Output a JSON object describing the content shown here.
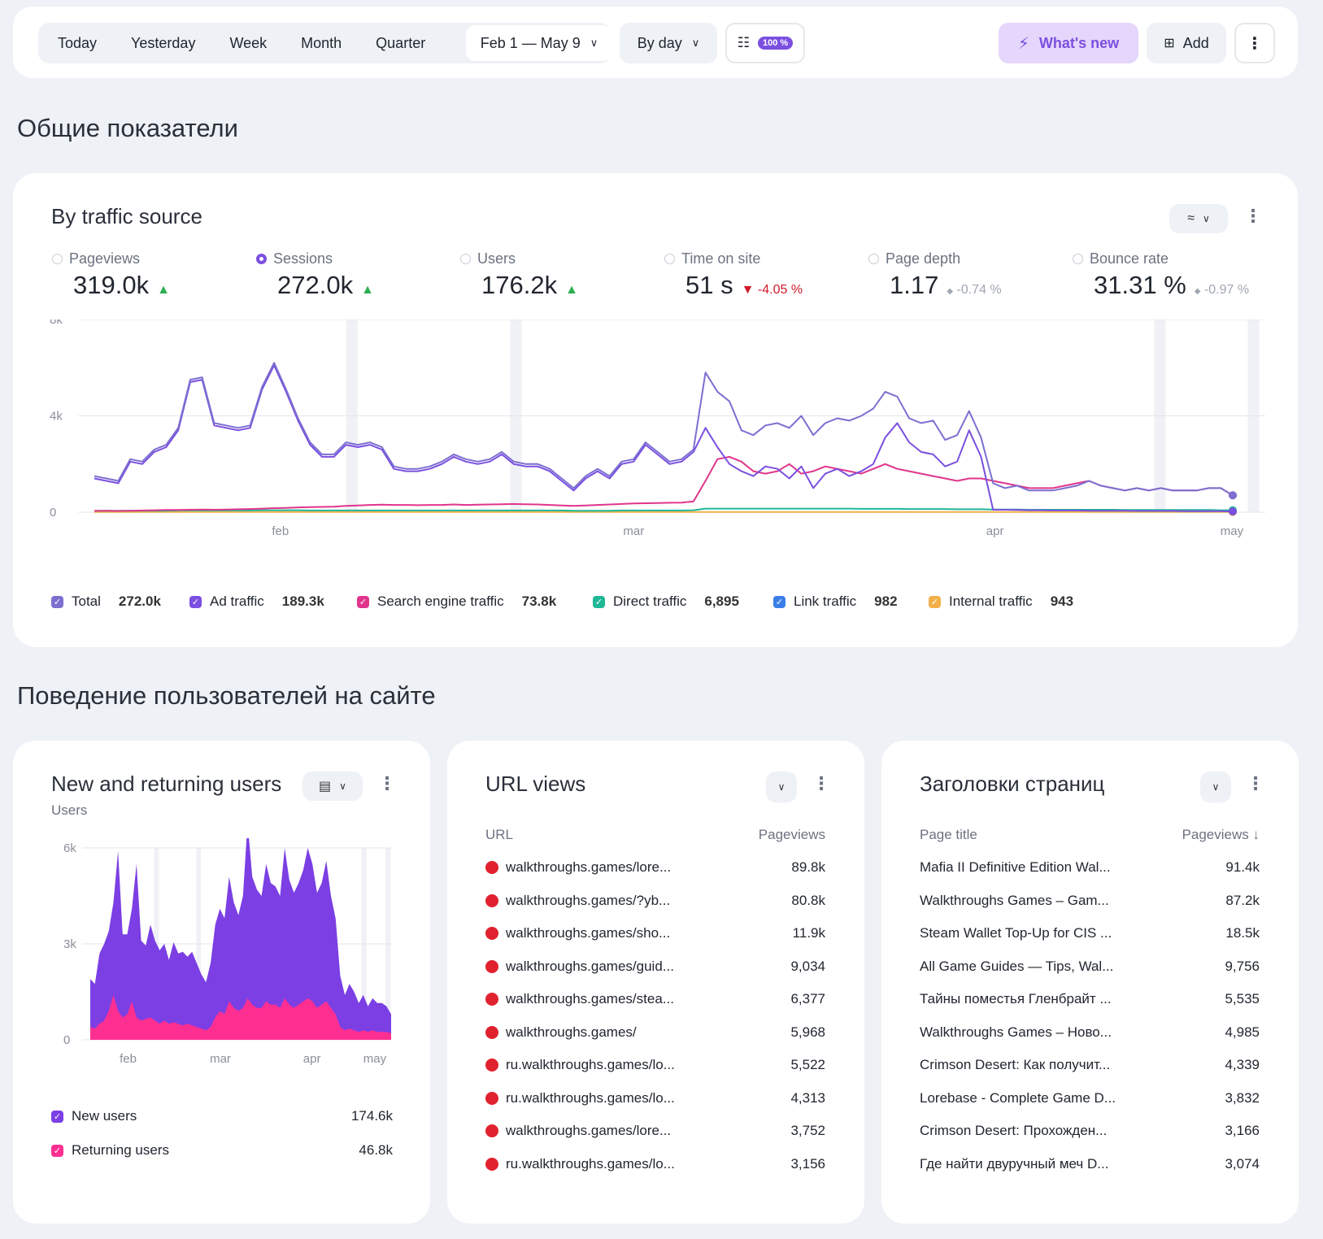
{
  "toolbar": {
    "periods": [
      "Today",
      "Yesterday",
      "Week",
      "Month",
      "Quarter"
    ],
    "date_range": "Feb 1 — May 9",
    "grouping": "By day",
    "sampling_badge": "100 %",
    "whats_new": "What's new",
    "add": "Add"
  },
  "sections": {
    "general": "Общие показатели",
    "behavior": "Поведение пользователей на сайте"
  },
  "traffic": {
    "title": "By traffic source",
    "metrics": [
      {
        "label": "Pageviews",
        "value": "319.0k",
        "trend": "▲",
        "delta": ""
      },
      {
        "label": "Sessions",
        "value": "272.0k",
        "trend": "▲",
        "delta": ""
      },
      {
        "label": "Users",
        "value": "176.2k",
        "trend": "▲",
        "delta": ""
      },
      {
        "label": "Time on site",
        "value": "51 s",
        "trend": "▼",
        "delta": "-4.05 %"
      },
      {
        "label": "Page depth",
        "value": "1.17",
        "trend": "◆",
        "delta": "-0.74 %"
      },
      {
        "label": "Bounce rate",
        "value": "31.31 %",
        "trend": "◆",
        "delta": "-0.97 %"
      }
    ],
    "legend": [
      {
        "label": "Total",
        "value": "272.0k",
        "color": "#7b6fd0"
      },
      {
        "label": "Ad traffic",
        "value": "189.3k",
        "color": "#7b4fe0"
      },
      {
        "label": "Search engine traffic",
        "value": "73.8k",
        "color": "#e0358c"
      },
      {
        "label": "Direct traffic",
        "value": "6,895",
        "color": "#1fb896"
      },
      {
        "label": "Link traffic",
        "value": "982",
        "color": "#3a7ee8"
      },
      {
        "label": "Internal traffic",
        "value": "943",
        "color": "#f3b04a"
      }
    ]
  },
  "chart_data": [
    {
      "type": "line",
      "ylim": [
        0,
        8000
      ],
      "yticks": [
        "8k",
        "4k",
        "0"
      ],
      "xticks": [
        "feb",
        "mar",
        "apr",
        "may"
      ],
      "series": [
        {
          "name": "Total",
          "color": "#7b6fd0",
          "values": [
            1500,
            1400,
            1300,
            2200,
            2100,
            2600,
            2800,
            3500,
            5500,
            5600,
            3700,
            3600,
            3500,
            3600,
            5200,
            6200,
            5100,
            3900,
            2900,
            2400,
            2400,
            2900,
            2800,
            2900,
            2700,
            1900,
            1800,
            1800,
            1900,
            2100,
            2400,
            2200,
            2100,
            2200,
            2500,
            2100,
            2000,
            2000,
            1800,
            1400,
            1000,
            1500,
            1800,
            1500,
            2100,
            2200,
            2900,
            2500,
            2100,
            2200,
            2600,
            5800,
            5000,
            4600,
            3400,
            3200,
            3600,
            3700,
            3500,
            4000,
            3200,
            3700,
            3900,
            3800,
            4000,
            4300,
            5000,
            4800,
            3900,
            3700,
            3800,
            3000,
            3200,
            4200,
            3100,
            1200,
            1000,
            1100,
            900,
            900,
            900,
            1000,
            1100,
            1300,
            1100,
            1000,
            900,
            1000,
            900,
            1000,
            900,
            900,
            900,
            1000,
            1000,
            700
          ]
        },
        {
          "name": "Ad traffic",
          "color": "#7b4fe0",
          "values": [
            1400,
            1300,
            1200,
            2100,
            2000,
            2500,
            2700,
            3400,
            5400,
            5500,
            3600,
            3500,
            3400,
            3500,
            5100,
            6100,
            5000,
            3800,
            2800,
            2300,
            2300,
            2800,
            2700,
            2800,
            2600,
            1800,
            1700,
            1700,
            1800,
            2000,
            2300,
            2100,
            2000,
            2100,
            2400,
            2000,
            1900,
            1900,
            1700,
            1300,
            900,
            1400,
            1700,
            1400,
            2000,
            2100,
            2800,
            2400,
            2000,
            2100,
            2500,
            3500,
            2700,
            2000,
            1700,
            1500,
            1900,
            1800,
            1400,
            1900,
            1000,
            1600,
            1800,
            1500,
            1700,
            2000,
            3100,
            3700,
            2900,
            2500,
            2400,
            1900,
            2100,
            3400,
            2300,
            100,
            100,
            90,
            80,
            80,
            70,
            70,
            70,
            60,
            60,
            60,
            60,
            50,
            50,
            50,
            50,
            40,
            40,
            40,
            40,
            30
          ]
        },
        {
          "name": "Search engine traffic",
          "color": "#e0358c",
          "values": [
            50,
            60,
            50,
            60,
            70,
            80,
            90,
            90,
            100,
            110,
            100,
            110,
            120,
            130,
            150,
            170,
            180,
            200,
            210,
            220,
            230,
            260,
            280,
            300,
            310,
            300,
            300,
            290,
            300,
            300,
            320,
            300,
            310,
            320,
            330,
            340,
            330,
            320,
            300,
            280,
            260,
            280,
            300,
            320,
            340,
            360,
            370,
            380,
            390,
            400,
            450,
            1300,
            2200,
            2300,
            2100,
            1700,
            1600,
            1700,
            2000,
            1600,
            1700,
            1900,
            1800,
            1700,
            1600,
            1800,
            2000,
            1800,
            1700,
            1600,
            1500,
            1400,
            1300,
            1400,
            1400,
            1300,
            1200,
            1100,
            1000,
            1000,
            1000,
            1100,
            1200,
            1300,
            1100,
            1000,
            900,
            1000,
            900,
            1000,
            900,
            900,
            900,
            1000,
            1000,
            700
          ]
        },
        {
          "name": "Direct traffic",
          "color": "#1fb896",
          "values": [
            60,
            60,
            60,
            60,
            60,
            60,
            60,
            70,
            70,
            70,
            70,
            70,
            70,
            70,
            80,
            80,
            80,
            80,
            70,
            70,
            70,
            70,
            70,
            70,
            70,
            70,
            70,
            70,
            70,
            70,
            70,
            70,
            70,
            70,
            70,
            70,
            70,
            70,
            70,
            70,
            60,
            60,
            60,
            60,
            70,
            70,
            70,
            70,
            70,
            70,
            80,
            150,
            150,
            150,
            150,
            150,
            150,
            150,
            150,
            150,
            150,
            150,
            150,
            150,
            140,
            140,
            140,
            140,
            130,
            130,
            130,
            130,
            120,
            120,
            120,
            110,
            110,
            110,
            100,
            100,
            100,
            100,
            100,
            100,
            100,
            100,
            90,
            90,
            90,
            90,
            90,
            90,
            90,
            90,
            80,
            80
          ]
        },
        {
          "name": "Internal traffic",
          "color": "#f3b04a",
          "values": [
            10,
            10,
            10,
            10,
            10,
            10,
            10,
            10,
            10,
            10,
            10,
            10,
            10,
            10,
            10,
            10,
            10,
            10,
            10,
            10,
            10,
            10,
            10,
            10,
            10,
            10,
            10,
            10,
            10,
            10,
            10,
            10,
            10,
            10,
            10,
            10,
            10,
            10,
            10,
            10,
            10,
            10,
            10,
            10,
            10,
            10,
            10,
            10,
            10,
            10,
            10,
            10,
            10,
            10,
            10,
            10,
            10,
            10,
            10,
            10,
            10,
            10,
            10,
            10,
            10,
            10,
            10,
            10,
            10,
            10,
            10,
            10,
            10,
            10,
            10,
            10,
            10,
            10,
            10,
            10,
            10,
            10,
            10,
            10,
            10,
            10,
            10,
            10,
            10,
            10,
            10,
            10,
            10,
            10,
            10,
            10
          ]
        }
      ]
    },
    {
      "type": "area",
      "ylabel": "Users",
      "ylim": [
        0,
        6000
      ],
      "yticks": [
        "6k",
        "3k",
        "0"
      ],
      "xticks": [
        "feb",
        "mar",
        "apr",
        "may"
      ],
      "series": [
        {
          "name": "New users",
          "color": "#7b3fe4",
          "values": [
            1500,
            1400,
            2200,
            2400,
            2500,
            2900,
            5000,
            2600,
            2500,
            2900,
            4800,
            2500,
            2300,
            2900,
            2500,
            2300,
            2400,
            2000,
            2500,
            2200,
            2300,
            2100,
            2300,
            2000,
            1700,
            1500,
            2000,
            2900,
            3200,
            3000,
            3900,
            3300,
            3000,
            3500,
            5500,
            4000,
            3700,
            3500,
            4300,
            3800,
            3700,
            3500,
            4700,
            3900,
            3600,
            3800,
            4100,
            4700,
            4300,
            3600,
            3800,
            4400,
            3500,
            3000,
            1600,
            1100,
            1400,
            1200,
            900,
            1100,
            800,
            1000,
            900,
            900,
            800,
            600
          ]
        },
        {
          "name": "Returning users",
          "color": "#ff2f92",
          "values": [
            400,
            350,
            500,
            600,
            900,
            1400,
            900,
            700,
            800,
            1200,
            700,
            600,
            650,
            700,
            600,
            500,
            600,
            500,
            550,
            500,
            450,
            500,
            450,
            400,
            350,
            300,
            400,
            700,
            900,
            800,
            1200,
            1000,
            900,
            1000,
            1300,
            1100,
            1000,
            1000,
            1200,
            1100,
            1100,
            1000,
            1300,
            1100,
            1000,
            1100,
            1200,
            1300,
            1200,
            1000,
            1100,
            1200,
            1000,
            800,
            400,
            300,
            350,
            300,
            250,
            300,
            250,
            300,
            250,
            250,
            250,
            200
          ]
        }
      ]
    }
  ],
  "new_returning": {
    "title": "New and returning users",
    "subtitle": "Users",
    "legend": [
      {
        "label": "New users",
        "value": "174.6k",
        "color": "#7b3fe4"
      },
      {
        "label": "Returning users",
        "value": "46.8k",
        "color": "#ff2f92"
      }
    ]
  },
  "url_views": {
    "title": "URL views",
    "col1": "URL",
    "col2": "Pageviews",
    "rows": [
      {
        "url": "walkthroughs.games/lore...",
        "value": "89.8k"
      },
      {
        "url": "walkthroughs.games/?yb...",
        "value": "80.8k"
      },
      {
        "url": "walkthroughs.games/sho...",
        "value": "11.9k"
      },
      {
        "url": "walkthroughs.games/guid...",
        "value": "9,034"
      },
      {
        "url": "walkthroughs.games/stea...",
        "value": "6,377"
      },
      {
        "url": "walkthroughs.games/",
        "value": "5,968"
      },
      {
        "url": "ru.walkthroughs.games/lo...",
        "value": "5,522"
      },
      {
        "url": "ru.walkthroughs.games/lo...",
        "value": "4,313"
      },
      {
        "url": "walkthroughs.games/lore...",
        "value": "3,752"
      },
      {
        "url": "ru.walkthroughs.games/lo...",
        "value": "3,156"
      }
    ]
  },
  "page_titles": {
    "title": "Заголовки страниц",
    "col1": "Page title",
    "col2": "Pageviews ↓",
    "rows": [
      {
        "title": "Mafia II Definitive Edition Wal...",
        "value": "91.4k"
      },
      {
        "title": "Walkthroughs Games – Gam...",
        "value": "87.2k"
      },
      {
        "title": "Steam Wallet Top-Up for CIS ...",
        "value": "18.5k"
      },
      {
        "title": "All Game Guides — Tips, Wal...",
        "value": "9,756"
      },
      {
        "title": "Тайны поместья Гленбрайт ...",
        "value": "5,535"
      },
      {
        "title": "Walkthroughs Games – Ново...",
        "value": "4,985"
      },
      {
        "title": "Crimson Desert: Как получит...",
        "value": "4,339"
      },
      {
        "title": "Lorebase - Complete Game D...",
        "value": "3,832"
      },
      {
        "title": "Crimson Desert: Прохожден...",
        "value": "3,166"
      },
      {
        "title": "Где найти двуручный меч D...",
        "value": "3,074"
      }
    ]
  }
}
